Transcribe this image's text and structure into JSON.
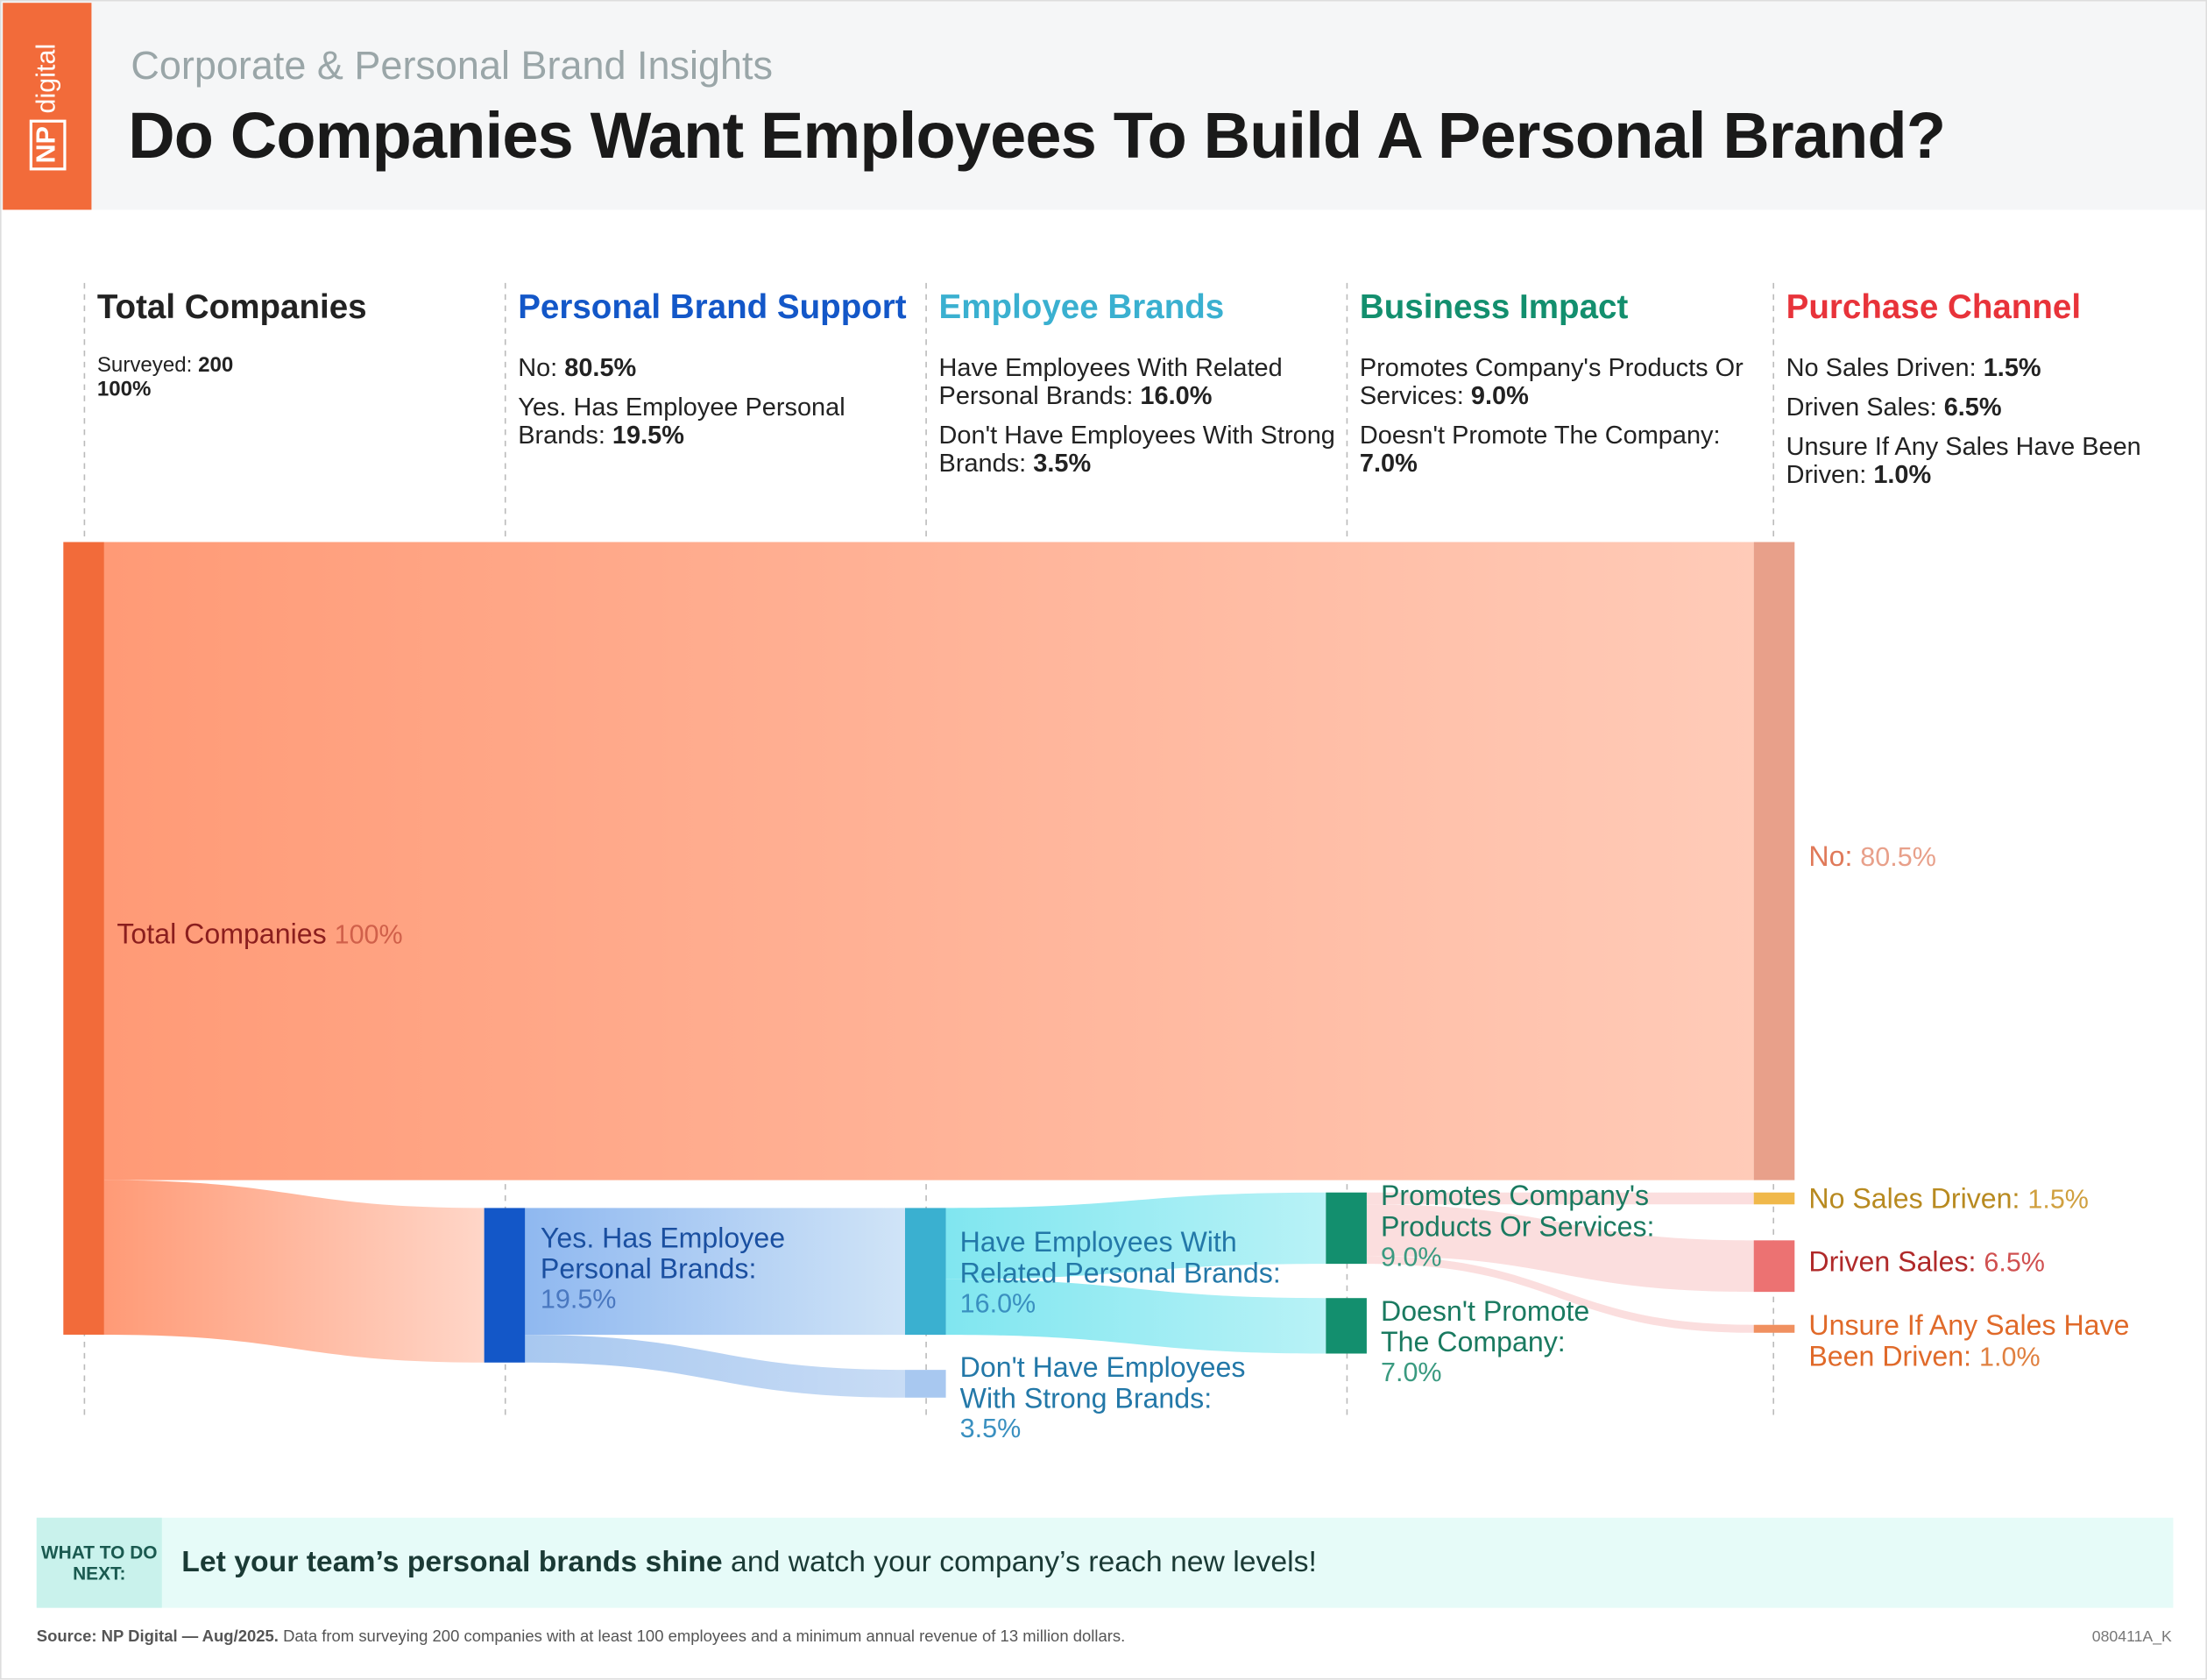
{
  "header": {
    "logo_mark": "NP",
    "logo_word": "digital",
    "subtitle": "Corporate & Personal Brand Insights",
    "title": "Do Companies Want Employees To Build A Personal Brand?"
  },
  "chart_data": {
    "type": "sankey",
    "columns": [
      {
        "title": "Total Companies",
        "color": "#222222",
        "items": [
          {
            "text": "Surveyed:",
            "value": "200"
          },
          {
            "value": "100%"
          }
        ]
      },
      {
        "title": "Personal Brand Support",
        "color": "#1357c8",
        "items": [
          {
            "text": "No:",
            "value": "80.5%"
          },
          {
            "text": "Yes. Has Employee Personal Brands:",
            "value": "19.5%"
          }
        ]
      },
      {
        "title": "Employee Brands",
        "color": "#3ab0d0",
        "items": [
          {
            "text": "Have Employees With Related Personal Brands:",
            "value": "16.0%"
          },
          {
            "text": "Don't Have Employees With Strong Brands:",
            "value": "3.5%"
          }
        ]
      },
      {
        "title": "Business Impact",
        "color": "#138f6e",
        "items": [
          {
            "text": "Promotes Company's Products Or Services:",
            "value": "9.0%"
          },
          {
            "text": "Doesn't Promote The Company:",
            "value": "7.0%"
          }
        ]
      },
      {
        "title": "Purchase Channel",
        "color": "#e8333a",
        "items": [
          {
            "text": "No Sales Driven:",
            "value": "1.5%"
          },
          {
            "text": "Driven Sales:",
            "value": "6.5%"
          },
          {
            "text": "Unsure If Any Sales Have Been Driven:",
            "value": "1.0%"
          }
        ]
      }
    ],
    "nodes": [
      {
        "label": "Total Companies",
        "value": 100,
        "value_label": "100%",
        "color": "#f26b3a",
        "label_color": "#8b1e1e",
        "value_color": "#d0604a"
      },
      {
        "label": "No:",
        "value": 80.5,
        "value_label": "80.5%",
        "color": "#e8a08a",
        "label_color": "#e07a5a",
        "value_color": "#e8a08a"
      },
      {
        "label": "Yes. Has Employee Personal Brands:",
        "value": 19.5,
        "value_label": "19.5%",
        "color": "#1357c8",
        "label_color": "#1a4fa0",
        "value_color": "#4a78c0"
      },
      {
        "label": "Have Employees With Related Personal Brands:",
        "value": 16,
        "value_label": "16.0%",
        "color": "#3ab0d0",
        "label_color": "#2378a8",
        "value_color": "#3a90c0"
      },
      {
        "label": "Don't Have Employees With Strong Brands:",
        "value": 3.5,
        "value_label": "3.5%",
        "color": "#a8c8f0",
        "label_color": "#2378a8",
        "value_color": "#3a90c0"
      },
      {
        "label": "Promotes Company's Products Or Services:",
        "value": 9,
        "value_label": "9.0%",
        "color": "#138f6e",
        "label_color": "#1a7a60",
        "value_color": "#3a9a80"
      },
      {
        "label": "Doesn't Promote The Company:",
        "value": 7,
        "value_label": "7.0%",
        "color": "#138f6e",
        "label_color": "#1a7a60",
        "value_color": "#3a9a80"
      },
      {
        "label": "No Sales Driven:",
        "value": 1.5,
        "value_label": "1.5%",
        "color": "#f0b84a",
        "label_color": "#b88a20",
        "value_color": "#d0a040"
      },
      {
        "label": "Driven Sales:",
        "value": 6.5,
        "value_label": "6.5%",
        "color": "#ec7272",
        "label_color": "#b02a2a",
        "value_color": "#d05050"
      },
      {
        "label": "Unsure If Any Sales Have Been Driven:",
        "value": 1,
        "value_label": "1.0%",
        "color": "#f09060",
        "label_color": "#e06a2a",
        "value_color": "#e08040"
      }
    ],
    "links": [
      {
        "source": 0,
        "target": 1,
        "value": 80.5,
        "colors": [
          "#ff9a76",
          "#ffcbb8"
        ]
      },
      {
        "source": 0,
        "target": 2,
        "value": 19.5,
        "colors": [
          "#ff9a76",
          "#ffd6c8"
        ]
      },
      {
        "source": 2,
        "target": 3,
        "value": 16,
        "colors": [
          "#8fb8f0",
          "#d0e4f7"
        ]
      },
      {
        "source": 2,
        "target": 4,
        "value": 3.5,
        "colors": [
          "#a8c8f0",
          "#c8dcf5"
        ]
      },
      {
        "source": 3,
        "target": 5,
        "value": 9,
        "colors": [
          "#80e6f0",
          "#b8f2f6"
        ]
      },
      {
        "source": 3,
        "target": 6,
        "value": 7,
        "colors": [
          "#80e6f0",
          "#b8f2f6"
        ]
      },
      {
        "source": 5,
        "target": 7,
        "value": 1.5,
        "colors": [
          "#fbdede",
          "#fbdede"
        ]
      },
      {
        "source": 5,
        "target": 8,
        "value": 6.5,
        "colors": [
          "#fbdede",
          "#fbdede"
        ]
      },
      {
        "source": 5,
        "target": 9,
        "value": 1,
        "colors": [
          "#fbdede",
          "#fbdede"
        ]
      }
    ]
  },
  "footer": {
    "tag": "WHAT TO DO NEXT:",
    "bold": "Let your team’s personal brands shine",
    "text": "and watch your company’s reach new levels!"
  },
  "source": {
    "bold": "Source: NP Digital — Aug/2025.",
    "text": "Data from surveying 200 companies with at least 100 employees and a minimum annual revenue of 13 million dollars.",
    "code": "080411A_K"
  }
}
